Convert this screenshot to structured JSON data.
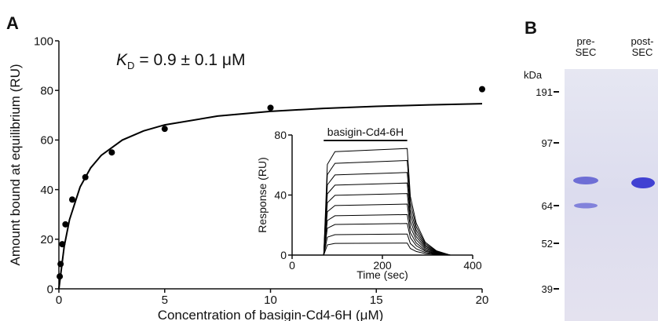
{
  "panels": {
    "a": "A",
    "b": "B"
  },
  "chart_data": [
    {
      "type": "scatter",
      "xlabel": "Concentration of basigin-Cd4-6H (μM)",
      "ylabel": "Amount bound at equilibrium (RU)",
      "annotation": {
        "symbol": "K",
        "subscript": "D",
        "text": "= 0.9 ± 0.1 μM"
      },
      "xlim": [
        0,
        20
      ],
      "xticks": [
        0,
        5,
        10,
        15,
        20
      ],
      "ylim": [
        0,
        100
      ],
      "yticks": [
        0,
        20,
        40,
        60,
        80,
        100
      ],
      "color": "#000000",
      "series": [
        {
          "type": "scatter",
          "x": [
            0.04,
            0.08,
            0.16,
            0.31,
            0.63,
            1.25,
            2.5,
            5,
            10,
            20
          ],
          "values": [
            5,
            10,
            18,
            26,
            36,
            45,
            55,
            64.5,
            73,
            80.5
          ]
        },
        {
          "type": "line",
          "x": [
            0,
            0.25,
            0.5,
            1,
            1.5,
            2,
            3,
            4,
            5,
            7.5,
            10,
            12.5,
            15,
            17.5,
            20
          ],
          "values": [
            0,
            16.96,
            27.86,
            41.05,
            48.75,
            53.79,
            60,
            63.67,
            66.1,
            69.64,
            71.56,
            72.76,
            73.58,
            74.18,
            74.64
          ]
        }
      ]
    },
    {
      "type": "line",
      "title": "basigin-Cd4-6H",
      "injection_x": [
        70,
        255
      ],
      "xlabel": "Time (sec)",
      "ylabel": "Response (RU)",
      "xlim": [
        0,
        400
      ],
      "xticks": [
        0,
        200,
        400
      ],
      "ylim": [
        0,
        80
      ],
      "yticks": [
        0,
        40,
        80
      ],
      "color": "#000000",
      "x": [
        0,
        70,
        78,
        95,
        255,
        262,
        275,
        295,
        320,
        350
      ],
      "series": [
        {
          "values": [
            0,
            0,
            60.4,
            68.9,
            71,
            39.1,
            21.3,
            8.5,
            2.8,
            0
          ]
        },
        {
          "values": [
            0,
            0,
            53.6,
            61.1,
            63,
            34.7,
            18.9,
            7.6,
            2.5,
            0
          ]
        },
        {
          "values": [
            0,
            0,
            46.8,
            53.4,
            55,
            30.3,
            16.5,
            6.6,
            2.2,
            0
          ]
        },
        {
          "values": [
            0,
            0,
            40.8,
            46.6,
            48,
            26.4,
            14.4,
            5.8,
            1.9,
            0
          ]
        },
        {
          "values": [
            0,
            0,
            34.9,
            39.8,
            41,
            22.6,
            12.3,
            4.9,
            1.6,
            0
          ]
        },
        {
          "values": [
            0,
            0,
            28.9,
            33,
            34,
            18.7,
            10.2,
            4.1,
            1.4,
            0
          ]
        },
        {
          "values": [
            0,
            0,
            23,
            26.2,
            27,
            14.9,
            8.1,
            3.2,
            1.1,
            0
          ]
        },
        {
          "values": [
            0,
            0,
            17.9,
            20.4,
            21,
            11.6,
            6.3,
            2.5,
            0.8,
            0
          ]
        },
        {
          "values": [
            0,
            0,
            11.9,
            13.6,
            14,
            7.7,
            4.2,
            1.7,
            0.6,
            0
          ]
        },
        {
          "values": [
            0,
            0,
            6.8,
            7.8,
            8,
            4.4,
            2.4,
            1,
            0.3,
            0
          ]
        }
      ]
    }
  ],
  "gel": {
    "lanes": [
      [
        "pre-",
        "SEC"
      ],
      [
        "post-",
        "SEC"
      ]
    ],
    "unit": "kDa",
    "markers": [
      "191",
      "97",
      "64",
      "52",
      "39"
    ]
  }
}
